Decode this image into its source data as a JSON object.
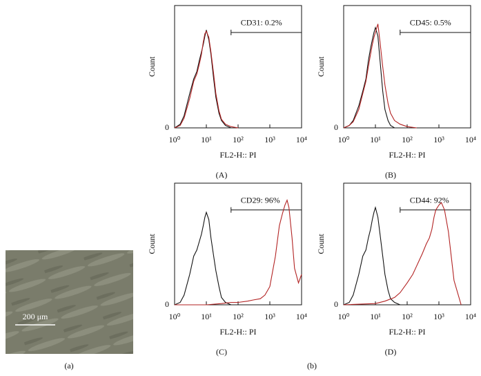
{
  "figure_label": "(b)",
  "image": {
    "scale_bar": "200 μm",
    "label": "(a)"
  },
  "chart_data": [
    {
      "type": "line",
      "panel": "(A)",
      "xlabel": "FL2-H:: PI",
      "ylabel": "Count",
      "xlog": true,
      "xlim": [
        1,
        10000
      ],
      "xticks": [
        {
          "value": 1,
          "label": "10⁰"
        },
        {
          "value": 10,
          "label": "10¹"
        },
        {
          "value": 100,
          "label": "10²"
        },
        {
          "value": 1000,
          "label": "10³"
        },
        {
          "value": 10000,
          "label": "10⁴"
        }
      ],
      "ylim": [
        0,
        100
      ],
      "yticks": [
        0
      ],
      "gate": {
        "label": "CD31: 0.2%",
        "range": [
          60,
          10000
        ],
        "level": 78
      },
      "series": [
        {
          "color": "#111111",
          "x": [
            1,
            1.5,
            2,
            3,
            4,
            5,
            6,
            7,
            8,
            9,
            10,
            12,
            14,
            17,
            20,
            25,
            30,
            40,
            60,
            100
          ],
          "values": [
            0,
            3,
            10,
            28,
            40,
            46,
            55,
            62,
            68,
            75,
            80,
            72,
            60,
            40,
            25,
            12,
            6,
            2,
            0,
            0
          ]
        },
        {
          "color": "#b22222",
          "x": [
            1,
            1.5,
            2,
            3,
            4,
            5,
            6,
            7,
            8,
            9,
            10,
            12,
            14,
            17,
            20,
            25,
            30,
            40,
            60,
            100
          ],
          "values": [
            0,
            2,
            8,
            24,
            38,
            44,
            52,
            60,
            70,
            77,
            79,
            74,
            62,
            44,
            28,
            14,
            7,
            3,
            1,
            0
          ]
        }
      ]
    },
    {
      "type": "line",
      "panel": "(B)",
      "xlabel": "FL2-H:: PI",
      "ylabel": "Count",
      "xlog": true,
      "xlim": [
        1,
        10000
      ],
      "xticks": [
        {
          "value": 1,
          "label": "10⁰"
        },
        {
          "value": 10,
          "label": "10¹"
        },
        {
          "value": 100,
          "label": "10²"
        },
        {
          "value": 1000,
          "label": "10³"
        },
        {
          "value": 10000,
          "label": "10⁴"
        }
      ],
      "ylim": [
        0,
        100
      ],
      "yticks": [
        0
      ],
      "gate": {
        "label": "CD45: 0.5%",
        "range": [
          60,
          10000
        ],
        "level": 78
      },
      "series": [
        {
          "color": "#111111",
          "x": [
            1,
            1.5,
            2,
            3,
            4,
            5,
            6,
            7,
            8,
            9,
            10,
            12,
            14,
            17,
            20,
            25,
            30,
            40,
            60,
            100
          ],
          "values": [
            0,
            2,
            6,
            18,
            30,
            40,
            55,
            65,
            72,
            78,
            82,
            75,
            55,
            30,
            15,
            6,
            2,
            0,
            0,
            0
          ]
        },
        {
          "color": "#b22222",
          "x": [
            1,
            1.5,
            2,
            3,
            4,
            5,
            6,
            7,
            8,
            9,
            10,
            12,
            14,
            17,
            20,
            25,
            30,
            40,
            60,
            100,
            200
          ],
          "values": [
            0,
            2,
            5,
            15,
            28,
            38,
            50,
            60,
            68,
            74,
            78,
            85,
            70,
            50,
            35,
            20,
            12,
            6,
            3,
            1,
            0
          ]
        }
      ]
    },
    {
      "type": "line",
      "panel": "(C)",
      "xlabel": "FL2-H:: PI",
      "ylabel": "Count",
      "xlog": true,
      "xlim": [
        1,
        10000
      ],
      "xticks": [
        {
          "value": 1,
          "label": "10⁰"
        },
        {
          "value": 10,
          "label": "10¹"
        },
        {
          "value": 100,
          "label": "10²"
        },
        {
          "value": 1000,
          "label": "10³"
        },
        {
          "value": 10000,
          "label": "10⁴"
        }
      ],
      "ylim": [
        0,
        100
      ],
      "yticks": [
        0
      ],
      "gate": {
        "label": "CD29: 96%",
        "range": [
          60,
          10000
        ],
        "level": 78
      },
      "series": [
        {
          "color": "#111111",
          "x": [
            1,
            1.5,
            2,
            3,
            4,
            5,
            6,
            7,
            8,
            9,
            10,
            12,
            14,
            17,
            20,
            25,
            30,
            40,
            60,
            100
          ],
          "values": [
            0,
            2,
            8,
            25,
            40,
            45,
            52,
            58,
            65,
            72,
            76,
            70,
            55,
            40,
            28,
            15,
            6,
            2,
            0,
            0
          ]
        },
        {
          "color": "#b22222",
          "x": [
            1,
            10,
            30,
            60,
            100,
            200,
            300,
            500,
            700,
            1000,
            1500,
            2000,
            2500,
            3000,
            3500,
            4000,
            5000,
            6000,
            8000,
            10000
          ],
          "values": [
            0,
            0,
            1,
            2,
            2,
            3,
            4,
            5,
            8,
            15,
            40,
            65,
            75,
            82,
            86,
            80,
            55,
            30,
            18,
            25
          ]
        }
      ]
    },
    {
      "type": "line",
      "panel": "(D)",
      "xlabel": "FL2-H:: PI",
      "ylabel": "Count",
      "xlog": true,
      "xlim": [
        1,
        10000
      ],
      "xticks": [
        {
          "value": 1,
          "label": "10⁰"
        },
        {
          "value": 10,
          "label": "10¹"
        },
        {
          "value": 100,
          "label": "10²"
        },
        {
          "value": 1000,
          "label": "10³"
        },
        {
          "value": 10000,
          "label": "10⁴"
        }
      ],
      "ylim": [
        0,
        100
      ],
      "yticks": [
        0
      ],
      "gate": {
        "label": "CD44: 92%",
        "range": [
          60,
          10000
        ],
        "level": 78
      },
      "series": [
        {
          "color": "#111111",
          "x": [
            1,
            1.5,
            2,
            3,
            4,
            5,
            6,
            7,
            8,
            9,
            10,
            12,
            14,
            17,
            20,
            25,
            30,
            40,
            60,
            100
          ],
          "values": [
            0,
            2,
            8,
            25,
            40,
            45,
            55,
            62,
            70,
            76,
            80,
            72,
            58,
            40,
            25,
            12,
            5,
            2,
            0,
            0
          ]
        },
        {
          "color": "#b22222",
          "x": [
            1,
            10,
            20,
            40,
            60,
            100,
            150,
            200,
            300,
            400,
            500,
            600,
            700,
            800,
            1000,
            1200,
            1500,
            2000,
            3000,
            5000
          ],
          "values": [
            0,
            1,
            3,
            6,
            10,
            18,
            25,
            32,
            42,
            50,
            55,
            62,
            72,
            78,
            82,
            84,
            78,
            60,
            20,
            0
          ]
        }
      ]
    }
  ]
}
